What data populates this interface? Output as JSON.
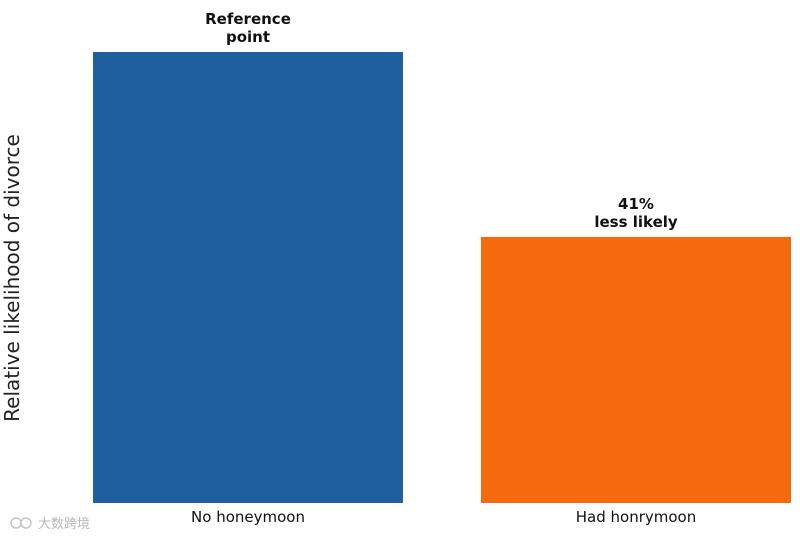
{
  "chart_data": {
    "type": "bar",
    "ylabel": "Relative likelihood of divorce",
    "xlabel": "",
    "categories": [
      "No honeymoon",
      "Had honrymoon"
    ],
    "values": [
      1.0,
      0.59
    ],
    "ylim": [
      0,
      1.0
    ],
    "colors": [
      "#1f5fa0",
      "#f5690f"
    ],
    "annotations": [
      [
        "Reference",
        "point"
      ],
      [
        "41%",
        "less likely"
      ]
    ],
    "grid": false,
    "axes_visible": false
  },
  "watermark": "大数跨境"
}
